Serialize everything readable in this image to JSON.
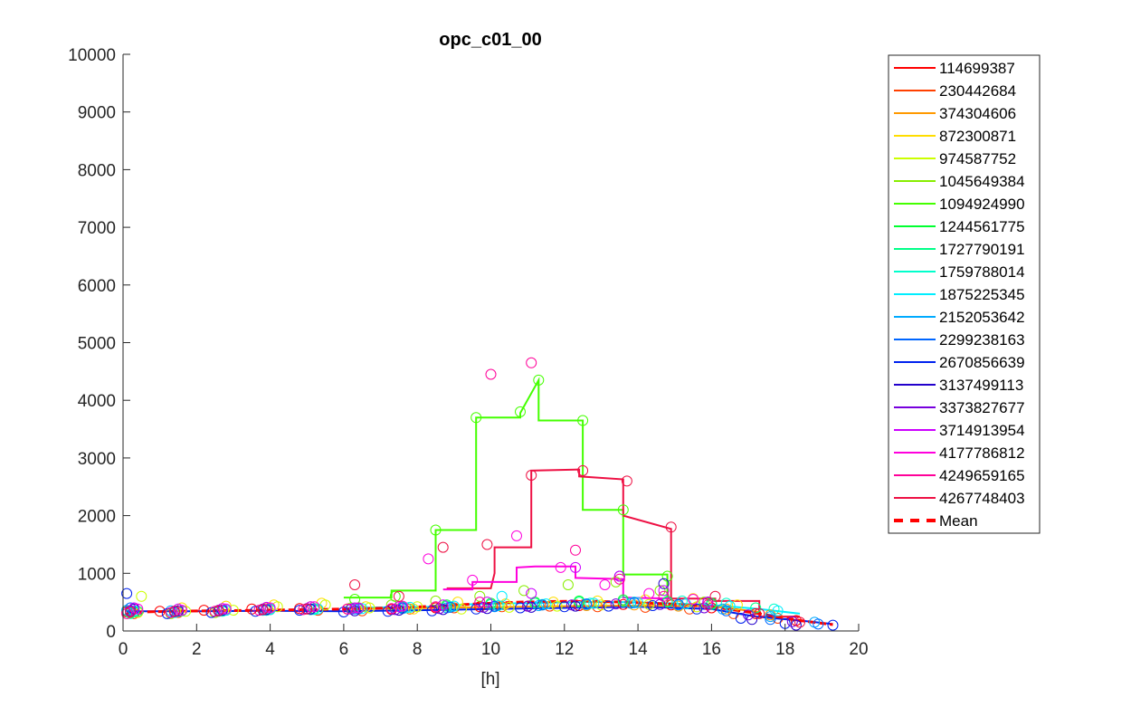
{
  "chart_data": {
    "type": "scatter",
    "title": "opc_c01_00",
    "xlabel": "[h]",
    "ylabel": "",
    "xlim": [
      0,
      20
    ],
    "ylim": [
      0,
      10000
    ],
    "x_ticks": [
      "0",
      "2",
      "4",
      "6",
      "8",
      "10",
      "12",
      "14",
      "16",
      "18",
      "20"
    ],
    "y_ticks": [
      "0",
      "1000",
      "2000",
      "3000",
      "4000",
      "5000",
      "6000",
      "7000",
      "8000",
      "9000",
      "10000"
    ],
    "grid": false,
    "legend_position": "right",
    "legend": [
      "114699387",
      "230442684",
      "374304606",
      "872300871",
      "974587752",
      "1045649384",
      "1094924990",
      "1244561775",
      "1727790191",
      "1759788014",
      "1875225345",
      "2152053642",
      "2299238163",
      "2670856639",
      "3137499113",
      "3373827677",
      "3714913954",
      "4177786812",
      "4249659165",
      "4267748403",
      "Mean"
    ],
    "mean_color": "#ff0000",
    "series": [
      {
        "name": "114699387",
        "color": "#ff0000",
        "x": [
          0.1,
          1.0,
          2.2,
          3.5,
          4.8,
          6.1,
          7.3,
          8.5,
          9.7,
          11.0,
          12.4,
          13.6,
          14.9,
          16.0,
          17.2,
          18.3
        ],
        "y": [
          330,
          340,
          360,
          380,
          390,
          380,
          370,
          400,
          420,
          430,
          440,
          460,
          450,
          400,
          300,
          180
        ]
      },
      {
        "name": "230442684",
        "color": "#ff4000",
        "x": [
          0.3,
          1.5,
          2.7,
          4.0,
          5.3,
          6.5,
          7.8,
          9.0,
          10.3,
          11.6,
          12.9,
          14.2,
          15.4,
          16.6,
          17.8
        ],
        "y": [
          300,
          320,
          350,
          370,
          360,
          350,
          380,
          400,
          420,
          430,
          420,
          410,
          380,
          300,
          220
        ]
      },
      {
        "name": "374304606",
        "color": "#ff9900",
        "x": [
          0.2,
          1.4,
          2.6,
          3.9,
          5.1,
          6.4,
          7.6,
          8.9,
          10.1,
          11.4,
          12.6,
          13.9,
          15.1,
          16.4,
          17.6
        ],
        "y": [
          310,
          330,
          360,
          400,
          420,
          380,
          390,
          410,
          430,
          450,
          440,
          450,
          430,
          380,
          280
        ]
      },
      {
        "name": "872300871",
        "color": "#ffdd00",
        "x": [
          0.4,
          1.6,
          2.8,
          4.1,
          5.4,
          6.6,
          7.9,
          9.1,
          10.4,
          11.7,
          12.9,
          14.2,
          15.5,
          16.7
        ],
        "y": [
          320,
          400,
          430,
          450,
          480,
          420,
          380,
          500,
          470,
          500,
          520,
          540,
          560,
          450
        ]
      },
      {
        "name": "974587752",
        "color": "#ccff00",
        "x": [
          0.5,
          1.7,
          3.0,
          4.2,
          5.5,
          6.7,
          8.0,
          9.2,
          10.5,
          11.8,
          13.0,
          14.3,
          15.6
        ],
        "y": [
          600,
          340,
          360,
          420,
          450,
          400,
          420,
          380,
          410,
          430,
          450,
          460,
          420
        ]
      },
      {
        "name": "1045649384",
        "color": "#88ee00",
        "x": [
          0.1,
          1.3,
          2.5,
          3.8,
          5.0,
          6.2,
          7.3,
          8.5,
          9.7,
          10.9,
          12.1,
          13.4,
          14.6,
          15.8
        ],
        "y": [
          350,
          300,
          320,
          360,
          380,
          400,
          450,
          520,
          600,
          700,
          800,
          850,
          700,
          500
        ]
      },
      {
        "name": "1094924990",
        "color": "#44ff00",
        "x": [
          0.2,
          1.4,
          2.6,
          3.9,
          5.1,
          6.3,
          7.4,
          8.5,
          9.6,
          10.8,
          11.3,
          12.5,
          13.6,
          14.8
        ],
        "y": [
          320,
          330,
          340,
          360,
          370,
          550,
          600,
          1750,
          3700,
          3800,
          4350,
          3650,
          2100,
          950
        ]
      },
      {
        "name": "1244561775",
        "color": "#00ff30",
        "x": [
          0.3,
          1.5,
          2.7,
          3.9,
          5.2,
          6.4,
          7.6,
          8.8,
          10.0,
          11.2,
          12.4,
          13.6,
          14.8,
          16.0
        ],
        "y": [
          330,
          340,
          350,
          370,
          380,
          400,
          420,
          450,
          480,
          500,
          520,
          540,
          510,
          480
        ]
      },
      {
        "name": "1727790191",
        "color": "#00ff88",
        "x": [
          0.4,
          1.6,
          2.8,
          4.0,
          5.2,
          6.4,
          7.6,
          8.8,
          10.0,
          11.2,
          12.4,
          13.6,
          14.8,
          16.0,
          17.2
        ],
        "y": [
          340,
          350,
          360,
          380,
          390,
          400,
          410,
          430,
          460,
          480,
          500,
          510,
          500,
          460,
          400
        ]
      },
      {
        "name": "1759788014",
        "color": "#00ffcc",
        "x": [
          0.2,
          1.4,
          2.7,
          3.9,
          5.2,
          6.4,
          7.7,
          8.9,
          10.2,
          11.4,
          12.7,
          13.9,
          15.2,
          16.4,
          17.7
        ],
        "y": [
          300,
          320,
          340,
          360,
          370,
          380,
          400,
          420,
          440,
          460,
          480,
          500,
          520,
          480,
          380
        ]
      },
      {
        "name": "1875225345",
        "color": "#00eeff",
        "x": [
          0.3,
          1.5,
          2.8,
          4.0,
          5.3,
          6.5,
          7.8,
          9.0,
          10.3,
          11.5,
          12.8,
          14.0,
          15.3,
          16.5,
          17.8
        ],
        "y": [
          350,
          340,
          360,
          370,
          380,
          390,
          410,
          430,
          600,
          470,
          480,
          490,
          470,
          430,
          350
        ]
      },
      {
        "name": "2152053642",
        "color": "#00aaff",
        "x": [
          0.1,
          1.3,
          2.6,
          3.8,
          5.1,
          6.3,
          7.6,
          8.8,
          10.1,
          11.3,
          12.6,
          13.8,
          15.1,
          16.3,
          17.6,
          18.8
        ],
        "y": [
          360,
          350,
          340,
          360,
          370,
          380,
          390,
          400,
          420,
          440,
          460,
          480,
          450,
          380,
          250,
          150
        ]
      },
      {
        "name": "2299238163",
        "color": "#0066ff",
        "x": [
          0.2,
          1.4,
          2.6,
          3.9,
          5.1,
          6.4,
          7.6,
          8.9,
          10.1,
          11.4,
          12.6,
          13.9,
          15.1,
          16.4,
          17.6,
          18.9
        ],
        "y": [
          400,
          330,
          350,
          370,
          380,
          390,
          400,
          410,
          430,
          450,
          470,
          490,
          460,
          350,
          200,
          120
        ]
      },
      {
        "name": "2670856639",
        "color": "#0022ee",
        "x": [
          0.1,
          1.2,
          2.4,
          3.6,
          4.8,
          6.0,
          7.2,
          8.4,
          9.6,
          10.8,
          12.0,
          13.2,
          14.4,
          15.6,
          16.8,
          18.0,
          19.3
        ],
        "y": [
          650,
          300,
          320,
          340,
          360,
          330,
          340,
          350,
          380,
          400,
          420,
          430,
          440,
          380,
          220,
          130,
          100
        ]
      },
      {
        "name": "3137499113",
        "color": "#2200cc",
        "x": [
          0.3,
          1.5,
          2.7,
          3.9,
          5.1,
          6.3,
          7.5,
          8.7,
          9.9,
          11.1,
          12.3,
          13.5,
          14.7,
          15.9,
          17.1,
          18.3
        ],
        "y": [
          380,
          350,
          360,
          370,
          380,
          350,
          360,
          370,
          390,
          410,
          430,
          950,
          820,
          500,
          200,
          100
        ]
      },
      {
        "name": "3373827677",
        "color": "#7700dd",
        "x": [
          0.2,
          1.4,
          2.6,
          3.8,
          5.0,
          6.2,
          7.4,
          8.6,
          9.8,
          11.0,
          12.2,
          13.4,
          14.6,
          15.8,
          17.0,
          18.2
        ],
        "y": [
          350,
          340,
          360,
          380,
          390,
          380,
          370,
          390,
          410,
          430,
          450,
          470,
          460,
          400,
          280,
          160
        ]
      },
      {
        "name": "3714913954",
        "color": "#cc00ff",
        "x": [
          0.3,
          1.5,
          2.7,
          3.9,
          5.1,
          6.3,
          7.5,
          8.7,
          9.9,
          11.1,
          12.3,
          13.5,
          14.7,
          15.9
        ],
        "y": [
          400,
          380,
          390,
          410,
          420,
          400,
          420,
          450,
          500,
          650,
          1100,
          950,
          700,
          500
        ]
      },
      {
        "name": "4177786812",
        "color": "#ff00dd",
        "x": [
          0.4,
          1.6,
          2.8,
          4.0,
          5.2,
          6.4,
          7.6,
          8.3,
          9.5,
          10.7,
          11.9,
          13.1,
          14.3,
          15.5
        ],
        "y": [
          380,
          360,
          380,
          400,
          420,
          400,
          430,
          1250,
          880,
          1650,
          1100,
          800,
          650,
          550
        ]
      },
      {
        "name": "4249659165",
        "color": "#ff0099",
        "x": [
          0.1,
          1.3,
          2.5,
          3.7,
          4.9,
          6.1,
          7.3,
          8.5,
          9.7,
          10.0,
          11.1,
          12.3,
          13.5,
          14.7,
          15.9
        ],
        "y": [
          300,
          320,
          340,
          360,
          370,
          380,
          390,
          420,
          500,
          4450,
          4650,
          1400,
          900,
          600,
          450
        ]
      },
      {
        "name": "4267748403",
        "color": "#ee1144",
        "x": [
          0.2,
          1.4,
          2.6,
          3.8,
          5.0,
          6.3,
          7.5,
          8.7,
          9.9,
          11.1,
          12.5,
          13.7,
          14.9,
          16.1,
          17.3,
          18.4
        ],
        "y": [
          330,
          340,
          350,
          370,
          380,
          800,
          600,
          1450,
          1500,
          2700,
          2780,
          2600,
          1800,
          600,
          300,
          150
        ]
      }
    ],
    "step_lines": [
      {
        "name": "1094924990",
        "color": "#44ff00",
        "points": [
          [
            6.0,
            580
          ],
          [
            7.3,
            580
          ],
          [
            7.3,
            700
          ],
          [
            8.5,
            700
          ],
          [
            8.5,
            1750
          ],
          [
            9.6,
            1750
          ],
          [
            9.6,
            3700
          ],
          [
            10.8,
            3700
          ],
          [
            10.8,
            3780
          ],
          [
            11.3,
            4350
          ],
          [
            11.3,
            3650
          ],
          [
            12.5,
            3650
          ],
          [
            12.5,
            2100
          ],
          [
            13.6,
            2100
          ],
          [
            13.6,
            980
          ],
          [
            14.8,
            980
          ],
          [
            14.8,
            500
          ]
        ]
      },
      {
        "name": "4267748403",
        "color": "#ee1144",
        "points": [
          [
            8.8,
            740
          ],
          [
            10.0,
            740
          ],
          [
            10.1,
            1000
          ],
          [
            10.1,
            1450
          ],
          [
            11.1,
            1450
          ],
          [
            11.1,
            2780
          ],
          [
            12.4,
            2800
          ],
          [
            12.4,
            2680
          ],
          [
            13.6,
            2630
          ],
          [
            13.6,
            2000
          ],
          [
            14.9,
            1770
          ],
          [
            14.9,
            560
          ],
          [
            16.1,
            560
          ],
          [
            16.1,
            520
          ],
          [
            17.3,
            520
          ],
          [
            17.3,
            250
          ],
          [
            18.4,
            250
          ]
        ]
      },
      {
        "name": "4177786812",
        "color": "#ff00dd",
        "points": [
          [
            8.7,
            720
          ],
          [
            9.5,
            720
          ],
          [
            9.5,
            850
          ],
          [
            10.7,
            850
          ],
          [
            10.7,
            1100
          ],
          [
            11.2,
            1120
          ],
          [
            12.3,
            1120
          ],
          [
            12.3,
            920
          ],
          [
            13.6,
            900
          ],
          [
            13.6,
            580
          ],
          [
            14.9,
            560
          ]
        ]
      },
      {
        "name": "1875225345",
        "color": "#00eeff",
        "points": [
          [
            6.0,
            400
          ],
          [
            8.5,
            420
          ],
          [
            9.6,
            470
          ],
          [
            10.8,
            480
          ],
          [
            12.5,
            500
          ],
          [
            13.6,
            500
          ],
          [
            14.8,
            480
          ],
          [
            16.0,
            450
          ],
          [
            17.3,
            380
          ],
          [
            18.4,
            300
          ]
        ]
      },
      {
        "name": "2670856639",
        "color": "#0022ee",
        "points": [
          [
            0.1,
            340
          ],
          [
            2.0,
            340
          ],
          [
            4.0,
            350
          ],
          [
            6.0,
            340
          ],
          [
            8.0,
            360
          ],
          [
            10.0,
            380
          ],
          [
            12.0,
            400
          ],
          [
            14.0,
            420
          ],
          [
            16.0,
            380
          ],
          [
            17.2,
            250
          ],
          [
            18.4,
            180
          ],
          [
            19.3,
            120
          ]
        ]
      },
      {
        "name": "374304606",
        "color": "#ff9900",
        "points": [
          [
            6.0,
            380
          ],
          [
            8.5,
            400
          ],
          [
            10.8,
            420
          ],
          [
            13.6,
            440
          ],
          [
            16.0,
            430
          ],
          [
            17.3,
            330
          ]
        ]
      }
    ],
    "mean_line": {
      "name": "Mean",
      "color": "#ff0000",
      "points": [
        [
          0.1,
          310
        ],
        [
          0.5,
          310
        ],
        [
          0.5,
          330
        ],
        [
          1.3,
          340
        ],
        [
          2.5,
          350
        ],
        [
          3.8,
          360
        ],
        [
          5.0,
          370
        ],
        [
          6.1,
          380
        ],
        [
          7.3,
          400
        ],
        [
          8.5,
          430
        ],
        [
          9.6,
          470
        ],
        [
          10.8,
          500
        ],
        [
          12.5,
          520
        ],
        [
          13.6,
          500
        ],
        [
          14.8,
          470
        ],
        [
          16.0,
          420
        ],
        [
          17.3,
          300
        ],
        [
          18.4,
          180
        ],
        [
          19.3,
          110
        ]
      ]
    }
  }
}
